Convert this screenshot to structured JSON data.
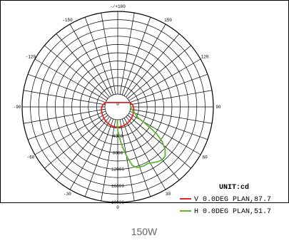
{
  "chart_data": {
    "type": "polar-line",
    "title": "",
    "unit_label": "UNIT:cd",
    "angle_labels": [
      {
        "angle": 180,
        "text": "-/+180"
      },
      {
        "angle": 150,
        "text": "150"
      },
      {
        "angle": 120,
        "text": "120"
      },
      {
        "angle": 90,
        "text": "90"
      },
      {
        "angle": 60,
        "text": "60"
      },
      {
        "angle": 30,
        "text": "30"
      },
      {
        "angle": 0,
        "text": "0"
      },
      {
        "angle": -30,
        "text": "-30"
      },
      {
        "angle": -60,
        "text": "-60"
      },
      {
        "angle": -90,
        "text": "-90"
      },
      {
        "angle": -120,
        "text": "-120"
      },
      {
        "angle": -150,
        "text": "-150"
      }
    ],
    "radial_labels": [
      "0",
      "4000",
      "8000",
      "12000",
      "16000",
      "20000"
    ],
    "rmax": 20000,
    "grid": true,
    "legend_placement": "bottom-right",
    "series": [
      {
        "name": "V 0.0DEG PLAN,87.7",
        "color": "#e8211b",
        "points": [
          [
            0,
            1800
          ],
          [
            10,
            1750
          ],
          [
            20,
            1650
          ],
          [
            30,
            1500
          ],
          [
            40,
            1350
          ],
          [
            50,
            1200
          ],
          [
            60,
            1050
          ],
          [
            70,
            950
          ],
          [
            80,
            850
          ],
          [
            90,
            700
          ],
          [
            100,
            450
          ],
          [
            110,
            0
          ],
          [
            -110,
            0
          ],
          [
            -100,
            450
          ],
          [
            -90,
            750
          ],
          [
            -80,
            900
          ],
          [
            -70,
            1000
          ],
          [
            -60,
            1100
          ],
          [
            -50,
            1250
          ],
          [
            -40,
            1400
          ],
          [
            -30,
            1550
          ],
          [
            -20,
            1700
          ],
          [
            -10,
            1780
          ],
          [
            0,
            1800
          ]
        ]
      },
      {
        "name": "H 0.0DEG PLAN,51.7",
        "color": "#5cb531",
        "points": [
          [
            -2,
            0
          ],
          [
            -1,
            1500
          ],
          [
            0,
            2500
          ],
          [
            2,
            3500
          ],
          [
            5,
            5500
          ],
          [
            8,
            7500
          ],
          [
            11,
            9500
          ],
          [
            14,
            11500
          ],
          [
            17,
            12200
          ],
          [
            20,
            12400
          ],
          [
            24,
            12500
          ],
          [
            28,
            12400
          ],
          [
            32,
            12800
          ],
          [
            36,
            13300
          ],
          [
            40,
            13600
          ],
          [
            44,
            13400
          ],
          [
            48,
            12300
          ],
          [
            52,
            10500
          ],
          [
            55,
            8500
          ],
          [
            57,
            6500
          ],
          [
            59,
            4500
          ],
          [
            62,
            2500
          ],
          [
            68,
            1500
          ],
          [
            76,
            600
          ],
          [
            85,
            150
          ],
          [
            90,
            0
          ]
        ]
      }
    ]
  },
  "caption": "150W"
}
